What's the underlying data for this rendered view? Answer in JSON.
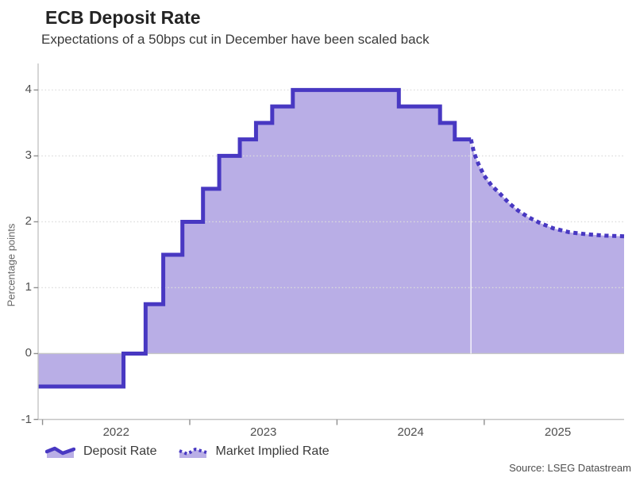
{
  "header": {
    "title": "ECB Deposit Rate",
    "subtitle": "Expectations of a 50bps cut in December have been scaled back"
  },
  "legend": {
    "items": [
      {
        "label": "Deposit Rate",
        "style": "solid-area",
        "icon": "area-wave-icon"
      },
      {
        "label": "Market Implied Rate",
        "style": "dotted-area",
        "icon": "dotted-wave-icon"
      }
    ]
  },
  "footer": {
    "source": "Source: LSEG Datastream"
  },
  "colors": {
    "line": "#4838c2",
    "fill": "#b9aee6",
    "grid": "#dcdcdc",
    "zero_line": "#c6c6c6",
    "axis": "#c4c4c4",
    "tick": "#8f8f8f",
    "divider": "rgba(255,255,255,0.8)"
  },
  "chart_data": {
    "type": "line",
    "title": "ECB Deposit Rate",
    "subtitle": "Expectations of a 50bps cut in December have been scaled back",
    "xlabel": "",
    "ylabel": "Percentage points",
    "xlim": [
      2021.97,
      2025.95
    ],
    "ylim": [
      -1,
      4.33
    ],
    "grid": "horizontal-dotted",
    "legend_position": "bottom-left",
    "y_axis": {
      "ticks": [
        -1,
        0,
        1,
        2,
        3,
        4
      ],
      "labels": [
        "-1",
        "0",
        "1",
        "2",
        "3",
        "4"
      ]
    },
    "x_axis": {
      "tick_years": [
        2022,
        2023,
        2024,
        2025
      ],
      "labels": [
        "2022",
        "2023",
        "2024",
        "2025"
      ],
      "label_positions": [
        2022.5,
        2023.5,
        2024.5,
        2025.5
      ]
    },
    "forecast_start_t": 2024.91,
    "series": [
      {
        "name": "Deposit Rate",
        "style": "step-solid",
        "unit": "percentage points",
        "changes": [
          {
            "t": 2021.97,
            "v": -0.5
          },
          {
            "t": 2022.55,
            "v": 0
          },
          {
            "t": 2022.7,
            "v": 0.75
          },
          {
            "t": 2022.82,
            "v": 1.5
          },
          {
            "t": 2022.95,
            "v": 2.0
          },
          {
            "t": 2023.09,
            "v": 2.5
          },
          {
            "t": 2023.2,
            "v": 3.0
          },
          {
            "t": 2023.34,
            "v": 3.25
          },
          {
            "t": 2023.45,
            "v": 3.5
          },
          {
            "t": 2023.56,
            "v": 3.75
          },
          {
            "t": 2023.7,
            "v": 4.0
          },
          {
            "t": 2024.42,
            "v": 3.75
          },
          {
            "t": 2024.7,
            "v": 3.5
          },
          {
            "t": 2024.8,
            "v": 3.25
          }
        ],
        "end_t": 2024.91
      },
      {
        "name": "Market Implied Rate",
        "style": "dotted-smooth",
        "points": [
          [
            2024.91,
            3.25
          ],
          [
            2024.93,
            3.05
          ],
          [
            2024.96,
            2.88
          ],
          [
            2025.0,
            2.7
          ],
          [
            2025.05,
            2.55
          ],
          [
            2025.11,
            2.42
          ],
          [
            2025.17,
            2.28
          ],
          [
            2025.23,
            2.17
          ],
          [
            2025.3,
            2.07
          ],
          [
            2025.38,
            1.98
          ],
          [
            2025.47,
            1.9
          ],
          [
            2025.58,
            1.84
          ],
          [
            2025.7,
            1.81
          ],
          [
            2025.82,
            1.79
          ],
          [
            2025.95,
            1.78
          ]
        ]
      }
    ]
  }
}
